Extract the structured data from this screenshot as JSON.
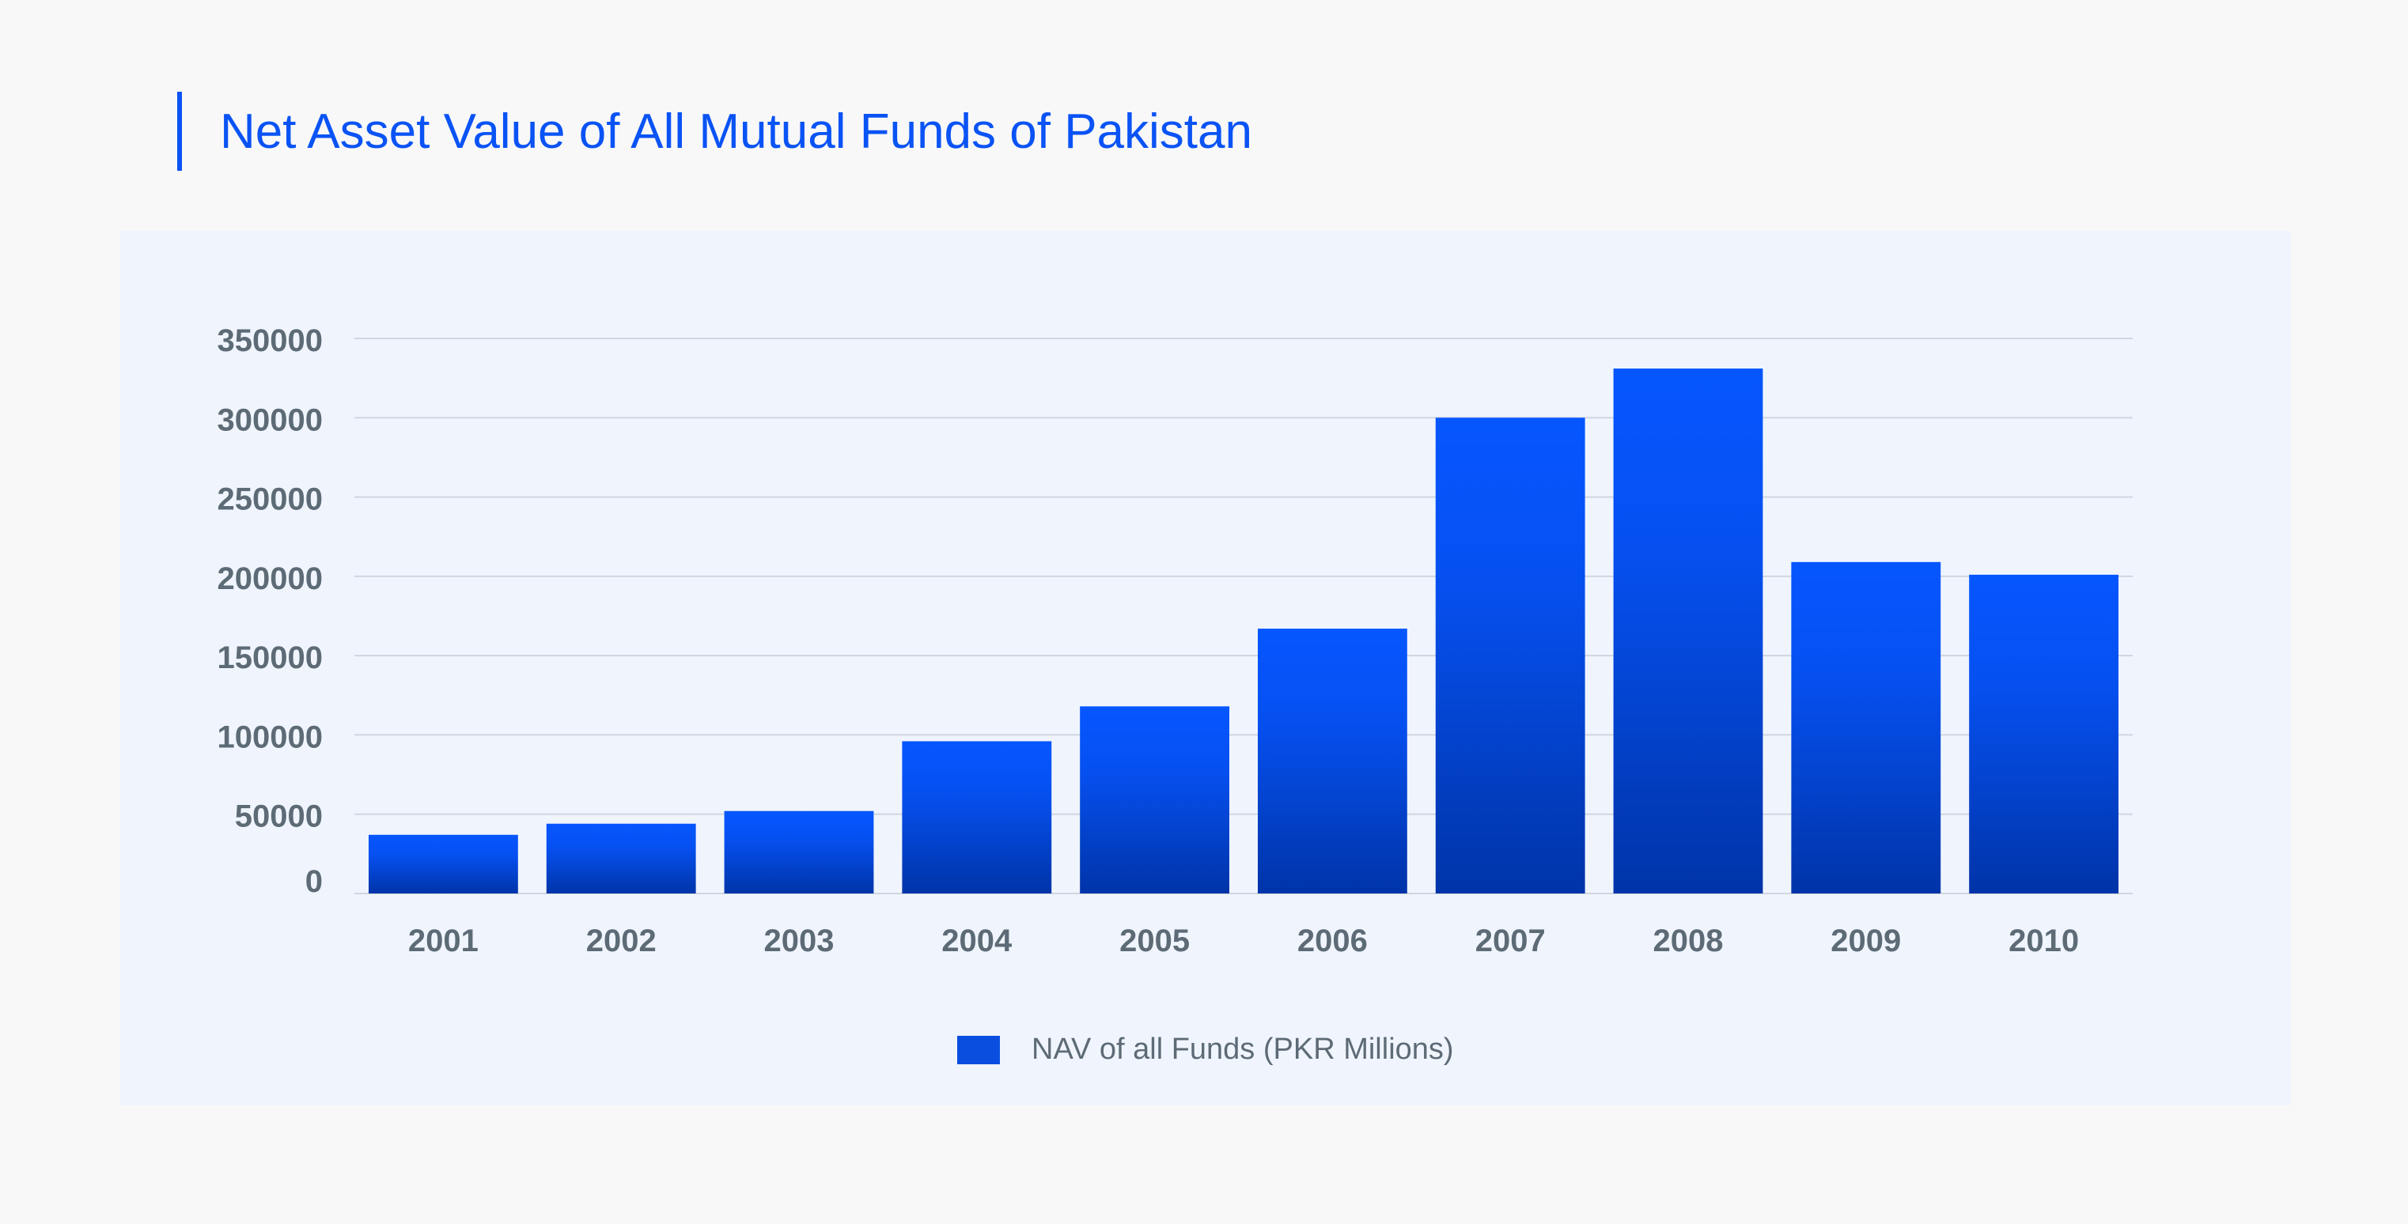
{
  "page": {
    "title": "Net Asset Value of All Mutual Funds of Pakistan"
  },
  "colors": {
    "accent": "#0a53f5",
    "bar_top": "#0656ff",
    "bar_bottom": "#0034a8",
    "gridline": "#cfd6e0",
    "text_muted": "#5d6b76",
    "panel_bg": "#f0f5fd"
  },
  "chart_data": {
    "type": "bar",
    "title": "Net Asset Value of All Mutual Funds of Pakistan",
    "xlabel": "",
    "ylabel": "",
    "categories": [
      "2001",
      "2002",
      "2003",
      "2004",
      "2005",
      "2006",
      "2007",
      "2008",
      "2009",
      "2010"
    ],
    "series": [
      {
        "name": "NAV of all Funds (PKR Millions)",
        "values": [
          37000,
          44000,
          52000,
          96000,
          118000,
          167000,
          300000,
          331000,
          209000,
          201000
        ]
      }
    ],
    "yticks": [
      "0",
      "50000",
      "100000",
      "150000",
      "200000",
      "250000",
      "300000",
      "350000"
    ],
    "ylim": [
      0,
      360000
    ],
    "grid": true,
    "legend_position": "bottom-center"
  }
}
